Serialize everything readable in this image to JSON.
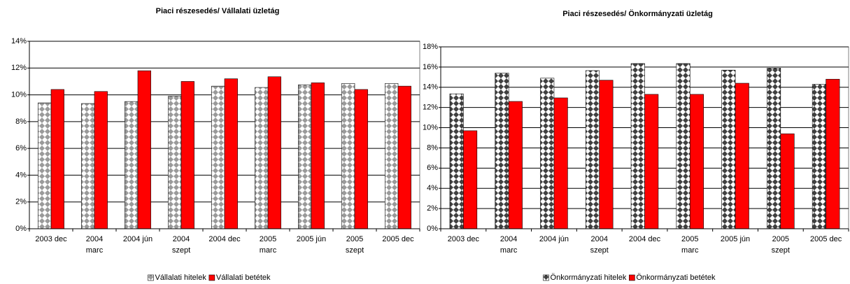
{
  "chart_data": [
    {
      "type": "bar",
      "title": "Piaci részesedés/ Vállalati üzletág",
      "categories": [
        "2003 dec",
        "2004\nmarc",
        "2004 jún",
        "2004\nszept",
        "2004 dec",
        "2005\nmarc",
        "2005 jún",
        "2005\nszept",
        "2005 dec"
      ],
      "series": [
        {
          "name": "Vállalati hitelek",
          "color": "#9a9a9a",
          "pattern": "diamond",
          "values": [
            9.4,
            9.35,
            9.5,
            9.9,
            10.65,
            10.55,
            10.75,
            10.85,
            10.85
          ]
        },
        {
          "name": "Vállalati betétek",
          "color": "#ff0000",
          "values": [
            10.4,
            10.25,
            11.8,
            11.0,
            11.2,
            11.35,
            10.9,
            10.4,
            10.65
          ]
        }
      ],
      "ylim": [
        0,
        14
      ],
      "yticks": [
        {
          "value": 0,
          "label": "0%"
        },
        {
          "value": 2,
          "label": "2%"
        },
        {
          "value": 4,
          "label": "4%"
        },
        {
          "value": 6,
          "label": "6%"
        },
        {
          "value": 8,
          "label": "8%"
        },
        {
          "value": 10,
          "label": "10%"
        },
        {
          "value": 12,
          "label": "12%"
        },
        {
          "value": 14,
          "label": "14%"
        }
      ],
      "grid": true,
      "legend": "bottom"
    },
    {
      "type": "bar",
      "title": "Piaci részesedés/ Önkormányzati üzletág",
      "categories": [
        "2003 dec",
        "2004\nmarc",
        "2004 jún",
        "2004\nszept",
        "2004 dec",
        "2005\nmarc",
        "2005 jún",
        "2005\nszept",
        "2005 dec"
      ],
      "series": [
        {
          "name": "Önkormányzati hitelek",
          "color": "#404040",
          "pattern": "diamond",
          "values": [
            13.35,
            15.4,
            14.9,
            15.65,
            16.35,
            16.35,
            15.7,
            15.9,
            14.3
          ]
        },
        {
          "name": "Önkormányzati betétek",
          "color": "#ff0000",
          "values": [
            9.7,
            12.6,
            12.95,
            14.7,
            13.3,
            13.3,
            14.4,
            9.4,
            14.8
          ]
        }
      ],
      "ylim": [
        0,
        18
      ],
      "yticks": [
        {
          "value": 0,
          "label": "0%"
        },
        {
          "value": 2,
          "label": "2%"
        },
        {
          "value": 4,
          "label": "4%"
        },
        {
          "value": 6,
          "label": "6%"
        },
        {
          "value": 8,
          "label": "8%"
        },
        {
          "value": 10,
          "label": "10%"
        },
        {
          "value": 12,
          "label": "12%"
        },
        {
          "value": 14,
          "label": "14%"
        },
        {
          "value": 16,
          "label": "16%"
        },
        {
          "value": 18,
          "label": "18%"
        }
      ],
      "grid": true,
      "legend": "bottom"
    }
  ]
}
